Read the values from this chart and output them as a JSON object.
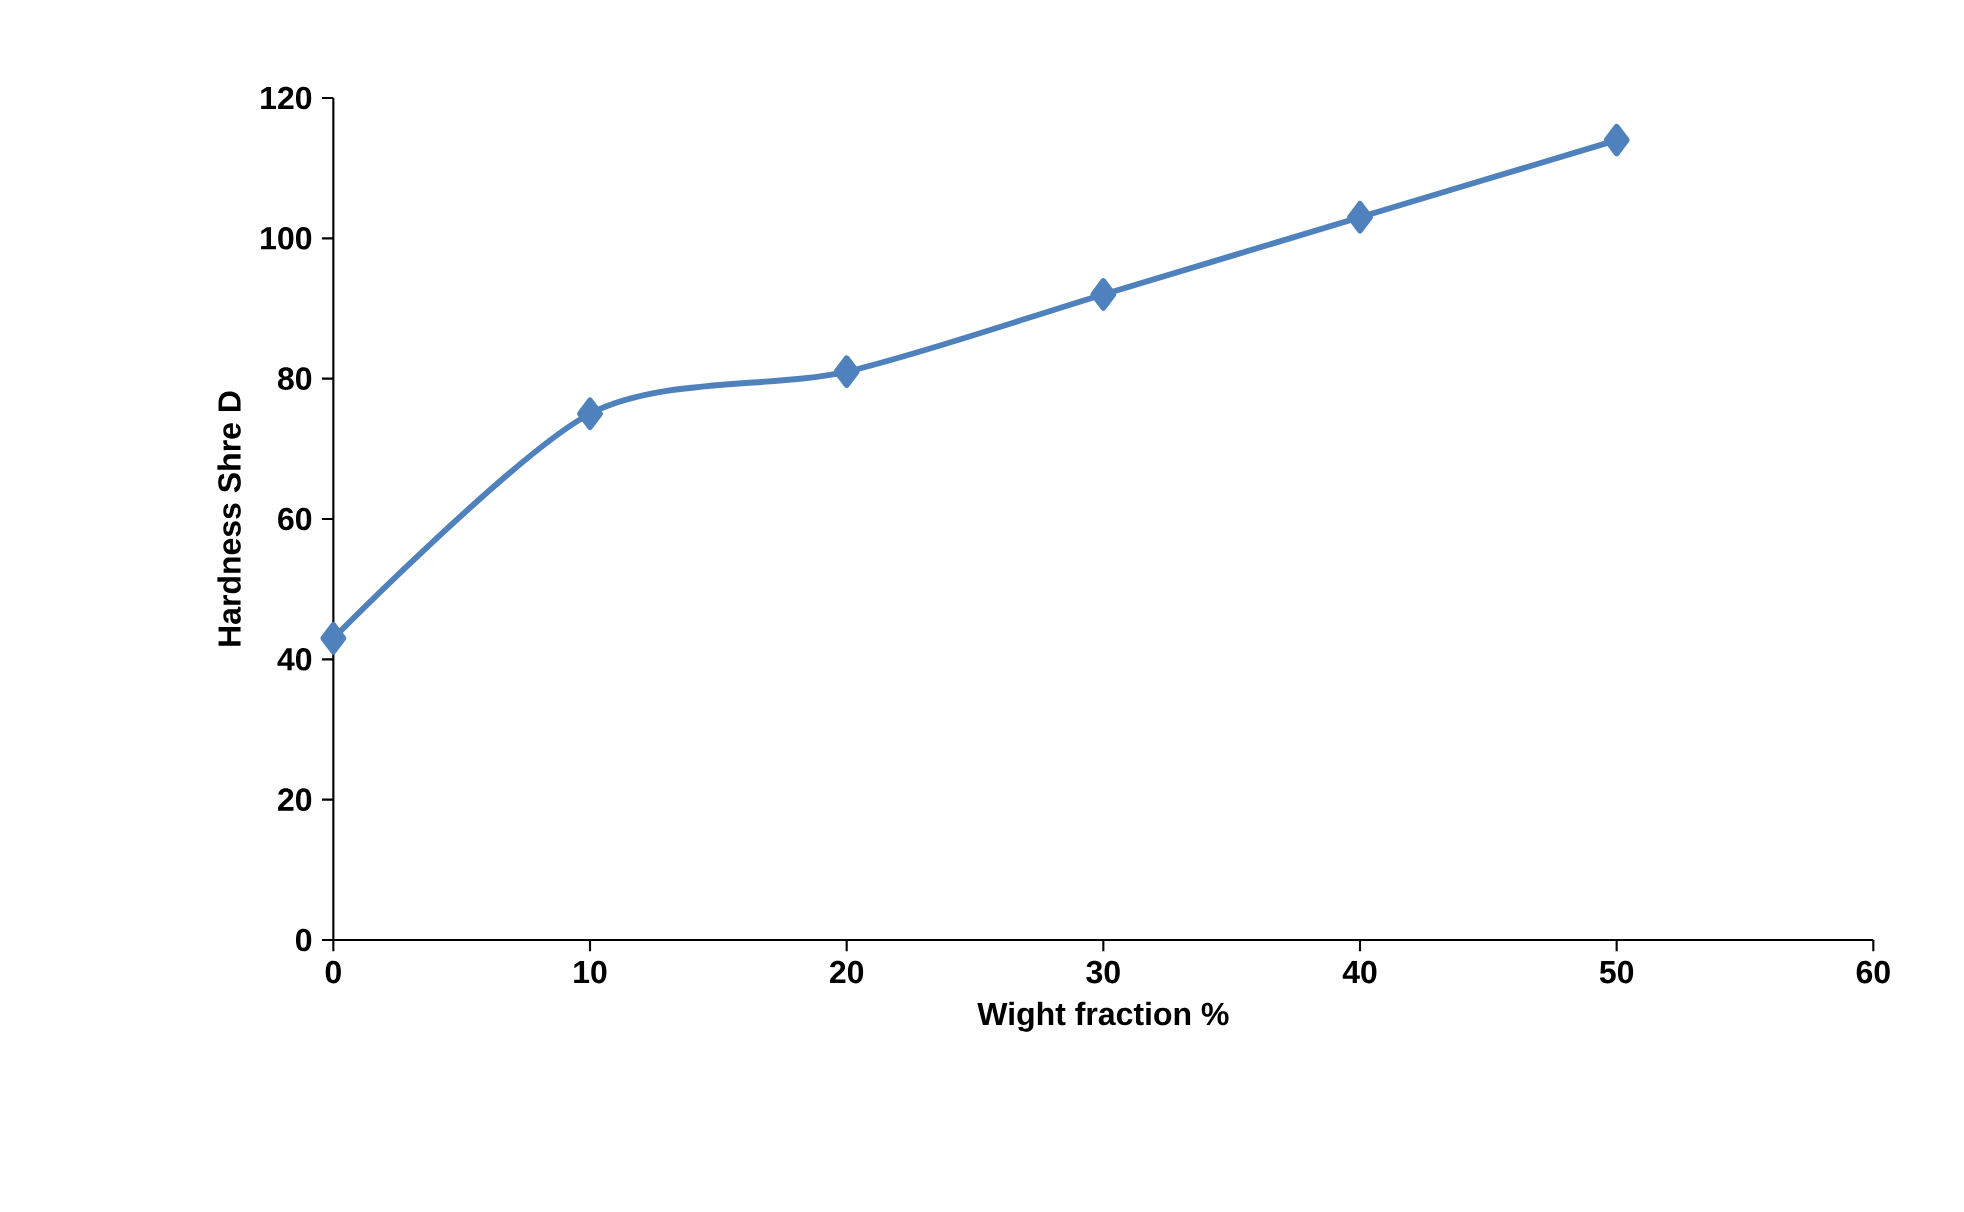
{
  "chart_data": {
    "type": "line",
    "xlabel": "Wight fraction %",
    "ylabel": "Hardness Shre D",
    "x": [
      0,
      10,
      20,
      30,
      40,
      50
    ],
    "series": [
      {
        "color": "#4f81bd",
        "values": [
          43,
          75,
          81,
          92,
          103,
          114
        ]
      }
    ],
    "xlim": [
      0,
      60
    ],
    "xticks": [
      0,
      10,
      20,
      30,
      40,
      50,
      60
    ],
    "ylim": [
      0,
      120
    ],
    "yticks": [
      0,
      20,
      40,
      60,
      80,
      100,
      120
    ],
    "grid": false,
    "marker": "diamond",
    "line_style": "solid"
  }
}
